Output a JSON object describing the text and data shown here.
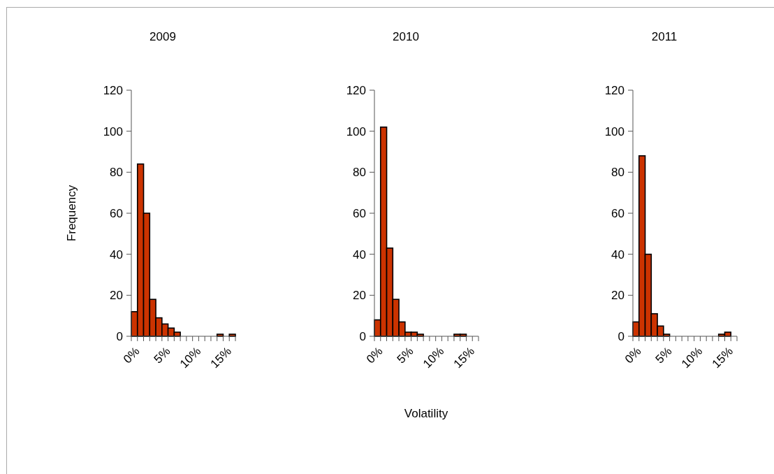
{
  "chart_data": [
    {
      "type": "bar",
      "title": "2009",
      "ylabel": "Frequency",
      "categories": [
        "0%",
        null,
        null,
        null,
        null,
        "5%",
        null,
        null,
        null,
        null,
        "10%",
        null,
        null,
        null,
        null,
        "15%",
        null
      ],
      "values": [
        12,
        84,
        60,
        18,
        9,
        6,
        4,
        2,
        0,
        0,
        0,
        0,
        0,
        0,
        1,
        0,
        1
      ],
      "color": "#cc3300",
      "ylim": [
        0,
        120
      ],
      "yticks": [
        0,
        20,
        40,
        60,
        80,
        100,
        120
      ],
      "grid": false
    },
    {
      "type": "bar",
      "title": "2010",
      "xlabel": "Volatility",
      "categories": [
        "0%",
        null,
        null,
        null,
        null,
        "5%",
        null,
        null,
        null,
        null,
        "10%",
        null,
        null,
        null,
        null,
        "15%",
        null
      ],
      "values": [
        8,
        102,
        43,
        18,
        7,
        2,
        2,
        1,
        0,
        0,
        0,
        0,
        0,
        1,
        1,
        0,
        0
      ],
      "color": "#cc3300",
      "ylim": [
        0,
        120
      ],
      "yticks": [
        0,
        20,
        40,
        60,
        80,
        100,
        120
      ],
      "grid": false
    },
    {
      "type": "bar",
      "title": "2011",
      "categories": [
        "0%",
        null,
        null,
        null,
        null,
        "5%",
        null,
        null,
        null,
        null,
        "10%",
        null,
        null,
        null,
        null,
        "15%",
        null
      ],
      "values": [
        7,
        88,
        40,
        11,
        5,
        1,
        0,
        0,
        0,
        0,
        0,
        0,
        0,
        0,
        1,
        2,
        0
      ],
      "color": "#cc3300",
      "ylim": [
        0,
        120
      ],
      "yticks": [
        0,
        20,
        40,
        60,
        80,
        100,
        120
      ],
      "grid": false
    }
  ]
}
